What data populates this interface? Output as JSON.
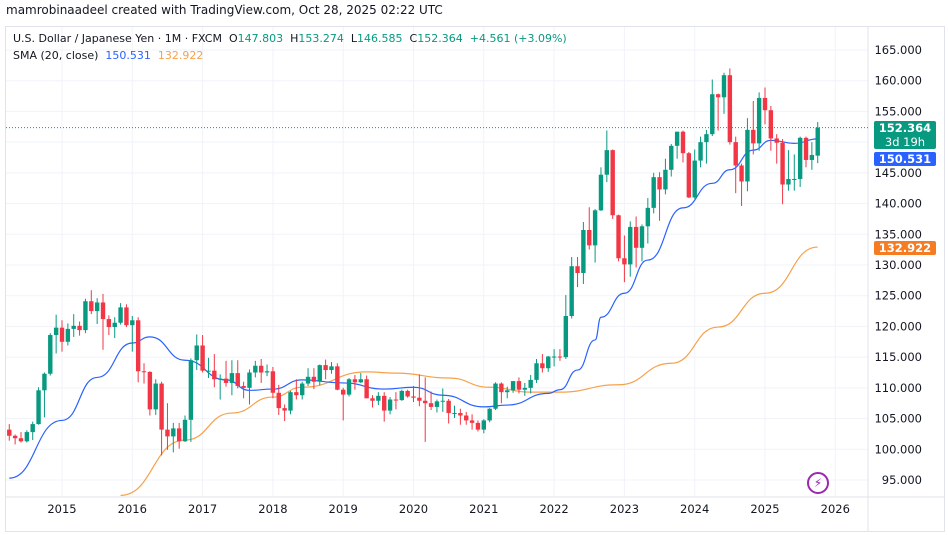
{
  "header": {
    "attribution": "mamrobinaadeel created with TradingView.com, Oct 28, 2025 02:22 UTC"
  },
  "legend": {
    "symbol": "U.S. Dollar / Japanese Yen · 1M · FXCM",
    "o_label": "O",
    "o": "147.803",
    "h_label": "H",
    "h": "153.274",
    "l_label": "L",
    "l": "146.585",
    "c_label": "C",
    "c": "152.364",
    "change": "+4.561 (+3.09%)",
    "indicator": "SMA (20, close)",
    "sma1": "150.531",
    "sma2": "132.922"
  },
  "price_labels": {
    "last": "152.364",
    "countdown": "3d 19h",
    "sma1": "150.531",
    "sma2": "132.922"
  },
  "logo_icon": "tradingview-lightning-icon",
  "colors": {
    "up": "#089981",
    "down": "#f23645",
    "sma1": "#2962ff",
    "sma2": "#f7a14a",
    "last_price": "#089981"
  },
  "chart_data": {
    "type": "candlestick",
    "interval": "1M",
    "start": "2014-04",
    "ylim": [
      95,
      165
    ],
    "grid": true,
    "yticks": [
      "165.000",
      "160.000",
      "155.000",
      "150.000",
      "145.000",
      "140.000",
      "135.000",
      "130.000",
      "125.000",
      "120.000",
      "115.000",
      "110.000",
      "105.000",
      "100.000",
      "95.000"
    ],
    "xticks": [
      "2015",
      "2016",
      "2017",
      "2018",
      "2019",
      "2020",
      "2021",
      "2022",
      "2023",
      "2024",
      "2025",
      "2026"
    ],
    "last_price": 152.364,
    "ohlc": [
      [
        103.2,
        104.1,
        101.4,
        102.2
      ],
      [
        102.2,
        102.4,
        100.8,
        101.8
      ],
      [
        101.8,
        102.8,
        101.1,
        101.3
      ],
      [
        101.3,
        103.1,
        101.1,
        102.8
      ],
      [
        102.8,
        104.5,
        101.5,
        104.1
      ],
      [
        104.1,
        110.1,
        104.0,
        109.6
      ],
      [
        109.6,
        112.5,
        105.2,
        112.3
      ],
      [
        112.3,
        118.9,
        112.0,
        118.6
      ],
      [
        118.6,
        121.9,
        115.6,
        119.8
      ],
      [
        119.8,
        121.0,
        115.9,
        117.5
      ],
      [
        117.5,
        120.5,
        116.9,
        119.6
      ],
      [
        119.6,
        122.0,
        118.3,
        120.1
      ],
      [
        120.1,
        120.8,
        118.5,
        119.4
      ],
      [
        119.4,
        124.5,
        118.9,
        124.1
      ],
      [
        124.1,
        125.9,
        122.0,
        122.5
      ],
      [
        122.5,
        124.6,
        120.4,
        123.9
      ],
      [
        123.9,
        125.3,
        116.2,
        121.2
      ],
      [
        121.2,
        121.8,
        118.6,
        119.9
      ],
      [
        119.9,
        121.5,
        118.1,
        120.6
      ],
      [
        120.6,
        123.8,
        120.3,
        123.1
      ],
      [
        123.1,
        123.6,
        119.9,
        120.2
      ],
      [
        120.2,
        121.7,
        115.9,
        121.0
      ],
      [
        121.0,
        121.5,
        110.9,
        112.7
      ],
      [
        112.7,
        114.0,
        110.7,
        112.6
      ],
      [
        112.6,
        112.7,
        105.5,
        106.5
      ],
      [
        106.5,
        111.4,
        105.6,
        110.7
      ],
      [
        110.7,
        111.0,
        99.0,
        103.2
      ],
      [
        103.2,
        107.5,
        99.9,
        102.1
      ],
      [
        102.1,
        104.3,
        99.5,
        103.4
      ],
      [
        103.4,
        104.3,
        100.1,
        101.3
      ],
      [
        101.3,
        105.5,
        101.2,
        104.8
      ],
      [
        104.8,
        114.8,
        101.2,
        114.5
      ],
      [
        114.5,
        118.7,
        112.9,
        116.9
      ],
      [
        116.9,
        118.6,
        112.5,
        112.8
      ],
      [
        112.8,
        114.9,
        111.6,
        112.8
      ],
      [
        112.8,
        115.5,
        110.1,
        111.4
      ],
      [
        111.4,
        112.2,
        108.1,
        111.5
      ],
      [
        111.5,
        114.4,
        110.2,
        110.8
      ],
      [
        110.8,
        114.5,
        108.8,
        112.4
      ],
      [
        112.4,
        114.5,
        109.9,
        110.3
      ],
      [
        110.3,
        111.0,
        108.3,
        110.0
      ],
      [
        110.0,
        113.0,
        107.3,
        112.5
      ],
      [
        112.5,
        114.4,
        111.7,
        113.6
      ],
      [
        113.6,
        114.7,
        110.8,
        112.5
      ],
      [
        112.5,
        113.8,
        111.9,
        112.7
      ],
      [
        112.7,
        113.4,
        108.3,
        109.2
      ],
      [
        109.2,
        110.5,
        105.6,
        106.7
      ],
      [
        106.7,
        107.3,
        104.6,
        106.3
      ],
      [
        106.3,
        109.5,
        105.7,
        109.3
      ],
      [
        109.3,
        111.4,
        108.1,
        108.8
      ],
      [
        108.8,
        111.0,
        108.1,
        110.7
      ],
      [
        110.7,
        113.2,
        110.3,
        111.8
      ],
      [
        111.8,
        113.2,
        109.8,
        111.0
      ],
      [
        111.0,
        113.8,
        110.4,
        113.7
      ],
      [
        113.7,
        114.6,
        111.4,
        112.9
      ],
      [
        112.9,
        114.2,
        112.3,
        113.5
      ],
      [
        113.5,
        114.0,
        109.6,
        109.7
      ],
      [
        109.7,
        110.0,
        104.7,
        108.9
      ],
      [
        108.9,
        111.6,
        108.6,
        111.4
      ],
      [
        111.4,
        112.1,
        109.7,
        110.9
      ],
      [
        110.9,
        112.4,
        110.8,
        111.4
      ],
      [
        111.4,
        112.0,
        108.3,
        108.3
      ],
      [
        108.3,
        108.8,
        106.8,
        107.9
      ],
      [
        107.9,
        109.3,
        107.2,
        108.7
      ],
      [
        108.7,
        109.3,
        104.5,
        106.3
      ],
      [
        106.3,
        108.5,
        105.7,
        108.1
      ],
      [
        108.1,
        109.3,
        106.5,
        108.0
      ],
      [
        108.0,
        109.7,
        107.9,
        109.5
      ],
      [
        109.5,
        109.7,
        108.4,
        108.6
      ],
      [
        108.6,
        110.3,
        107.7,
        108.4
      ],
      [
        108.4,
        112.2,
        107.0,
        107.9
      ],
      [
        107.9,
        111.7,
        101.2,
        107.5
      ],
      [
        107.5,
        109.4,
        106.4,
        106.9
      ],
      [
        106.9,
        108.1,
        106.0,
        107.8
      ],
      [
        107.8,
        109.9,
        106.1,
        107.9
      ],
      [
        107.9,
        108.2,
        104.2,
        105.9
      ],
      [
        105.9,
        107.1,
        105.1,
        105.9
      ],
      [
        105.9,
        106.6,
        104.0,
        105.5
      ],
      [
        105.5,
        106.1,
        104.0,
        104.7
      ],
      [
        104.7,
        105.7,
        103.2,
        104.3
      ],
      [
        104.3,
        104.7,
        102.9,
        103.2
      ],
      [
        103.2,
        104.9,
        102.6,
        104.7
      ],
      [
        104.7,
        106.7,
        104.4,
        106.6
      ],
      [
        106.6,
        110.9,
        106.4,
        110.7
      ],
      [
        110.7,
        110.9,
        107.5,
        109.3
      ],
      [
        109.3,
        110.2,
        108.3,
        109.6
      ],
      [
        109.6,
        111.1,
        109.2,
        111.1
      ],
      [
        111.1,
        111.7,
        109.1,
        109.7
      ],
      [
        109.7,
        110.8,
        108.7,
        110.0
      ],
      [
        110.0,
        112.1,
        109.1,
        111.3
      ],
      [
        111.3,
        114.7,
        110.8,
        114.0
      ],
      [
        114.0,
        115.5,
        112.5,
        113.2
      ],
      [
        113.2,
        115.2,
        112.6,
        115.1
      ],
      [
        115.1,
        116.3,
        113.5,
        115.1
      ],
      [
        115.1,
        116.3,
        114.4,
        115.0
      ],
      [
        115.0,
        125.1,
        114.7,
        121.7
      ],
      [
        121.7,
        131.3,
        121.3,
        129.8
      ],
      [
        129.8,
        131.3,
        126.4,
        128.7
      ],
      [
        128.7,
        137.0,
        126.9,
        135.7
      ],
      [
        135.7,
        139.4,
        132.5,
        133.2
      ],
      [
        133.2,
        139.1,
        130.4,
        138.9
      ],
      [
        138.9,
        145.9,
        138.8,
        144.7
      ],
      [
        144.7,
        151.9,
        143.5,
        148.7
      ],
      [
        148.7,
        148.8,
        137.5,
        138.1
      ],
      [
        138.1,
        138.2,
        130.6,
        131.1
      ],
      [
        131.1,
        134.8,
        127.2,
        130.1
      ],
      [
        130.1,
        137.1,
        128.1,
        136.2
      ],
      [
        136.2,
        137.9,
        129.6,
        132.8
      ],
      [
        132.8,
        136.6,
        130.6,
        136.3
      ],
      [
        136.3,
        140.9,
        133.5,
        139.3
      ],
      [
        139.3,
        145.0,
        138.4,
        144.3
      ],
      [
        144.3,
        145.1,
        137.2,
        142.3
      ],
      [
        142.3,
        147.3,
        141.5,
        145.5
      ],
      [
        145.5,
        149.7,
        144.4,
        149.4
      ],
      [
        149.4,
        151.7,
        147.3,
        151.7
      ],
      [
        151.7,
        151.9,
        146.7,
        148.2
      ],
      [
        148.2,
        148.4,
        140.9,
        141.0
      ],
      [
        141.0,
        148.8,
        140.8,
        147.0
      ],
      [
        147.0,
        150.9,
        145.9,
        150.0
      ],
      [
        150.0,
        152.0,
        146.5,
        151.3
      ],
      [
        151.3,
        160.2,
        151.0,
        157.8
      ],
      [
        157.8,
        157.9,
        151.9,
        157.3
      ],
      [
        157.3,
        161.3,
        154.6,
        160.9
      ],
      [
        160.9,
        162.0,
        149.6,
        150.0
      ],
      [
        150.0,
        150.9,
        141.7,
        146.2
      ],
      [
        146.2,
        146.5,
        139.6,
        143.6
      ],
      [
        143.6,
        153.9,
        142.0,
        152.0
      ],
      [
        152.0,
        156.7,
        148.0,
        149.8
      ],
      [
        149.8,
        158.1,
        148.6,
        157.2
      ],
      [
        157.2,
        158.9,
        152.9,
        155.2
      ],
      [
        155.2,
        155.9,
        148.6,
        150.6
      ],
      [
        150.6,
        151.3,
        146.5,
        149.9
      ],
      [
        149.9,
        150.5,
        139.9,
        143.1
      ],
      [
        143.1,
        148.7,
        142.1,
        144.0
      ],
      [
        144.0,
        148.0,
        142.1,
        144.0
      ],
      [
        144.0,
        150.9,
        142.7,
        150.7
      ],
      [
        150.7,
        150.9,
        145.9,
        147.1
      ],
      [
        147.1,
        150.0,
        145.5,
        147.9
      ],
      [
        147.803,
        153.274,
        146.585,
        152.364
      ]
    ],
    "series": [
      {
        "name": "SMA (20, close)",
        "color": "#2962ff",
        "points": [
          [
            "2014-04",
            95.3
          ],
          [
            "2015-01",
            104.7
          ],
          [
            "2015-07",
            111.7
          ],
          [
            "2016-01",
            117.3
          ],
          [
            "2016-04",
            118.3
          ],
          [
            "2016-10",
            114.5
          ],
          [
            "2017-05",
            111.3
          ],
          [
            "2017-09",
            109.6
          ],
          [
            "2018-01",
            109.8
          ],
          [
            "2018-06",
            111.3
          ],
          [
            "2019-01",
            110.8
          ],
          [
            "2019-08",
            109.8
          ],
          [
            "2020-01",
            110.1
          ],
          [
            "2020-06",
            108.8
          ],
          [
            "2021-01",
            106.9
          ],
          [
            "2021-05",
            107.2
          ],
          [
            "2021-12",
            109.1
          ],
          [
            "2022-02",
            109.7
          ],
          [
            "2022-05",
            112.9
          ],
          [
            "2022-08",
            117.8
          ],
          [
            "2022-09",
            121.5
          ],
          [
            "2023-01",
            125.4
          ],
          [
            "2023-05",
            130.8
          ],
          [
            "2023-11",
            139.3
          ],
          [
            "2024-04",
            143.3
          ],
          [
            "2024-07",
            145.5
          ],
          [
            "2024-11",
            148.7
          ],
          [
            "2025-02",
            150.3
          ],
          [
            "2025-06",
            149.8
          ],
          [
            "2025-10",
            150.531
          ]
        ]
      },
      {
        "color": "#f7a14a",
        "points": [
          [
            "2015-11",
            92.5
          ],
          [
            "2016-10",
            101.5
          ],
          [
            "2017-06",
            105.9
          ],
          [
            "2018-01",
            108.5
          ],
          [
            "2018-06",
            110.1
          ],
          [
            "2019-05",
            112.6
          ],
          [
            "2019-10",
            112.4
          ],
          [
            "2020-07",
            111.6
          ],
          [
            "2021-02",
            110.1
          ],
          [
            "2021-09",
            109.3
          ],
          [
            "2022-02",
            109.3
          ],
          [
            "2022-12",
            110.5
          ],
          [
            "2023-09",
            114.0
          ],
          [
            "2024-05",
            119.9
          ],
          [
            "2025-01",
            125.4
          ],
          [
            "2025-10",
            132.922
          ]
        ]
      }
    ]
  }
}
